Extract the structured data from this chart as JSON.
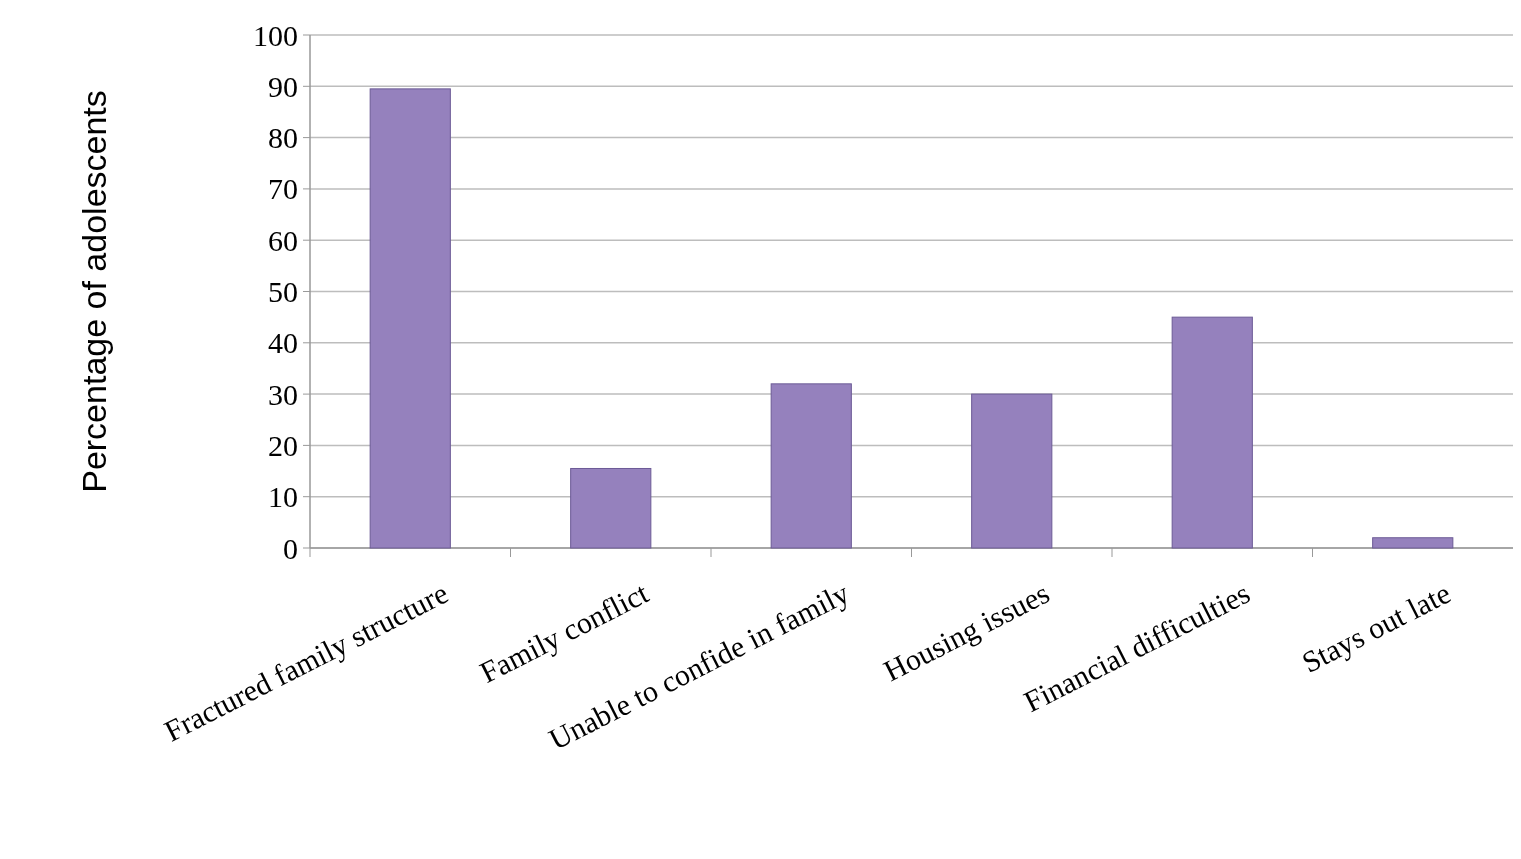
{
  "chart_data": {
    "type": "bar",
    "ylabel": "Percentage of adolescents",
    "categories": [
      "Fractured family structure",
      "Family conflict",
      "Unable to confide in family",
      "Housing issues",
      "Financial difficulties",
      "Stays out late"
    ],
    "values": [
      89.5,
      15.5,
      32,
      30,
      45,
      2
    ],
    "color": "#9581bd",
    "ylim": [
      0,
      100
    ],
    "yticks": [
      0,
      10,
      20,
      30,
      40,
      50,
      60,
      70,
      80,
      90,
      100
    ],
    "grid": "y"
  }
}
